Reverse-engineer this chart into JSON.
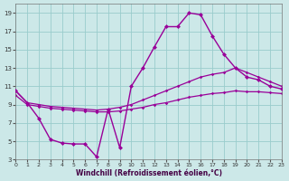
{
  "background_color": "#cce8e8",
  "grid_color": "#99cccc",
  "line_color": "#990099",
  "xlabel": "Windchill (Refroidissement éolien,°C)",
  "xlim": [
    0,
    23
  ],
  "ylim": [
    3,
    20
  ],
  "xticks": [
    0,
    1,
    2,
    3,
    4,
    5,
    6,
    7,
    8,
    9,
    10,
    11,
    12,
    13,
    14,
    15,
    16,
    17,
    18,
    19,
    20,
    21,
    22,
    23
  ],
  "yticks": [
    3,
    5,
    7,
    9,
    11,
    13,
    15,
    17,
    19
  ],
  "hours": [
    0,
    1,
    2,
    3,
    4,
    5,
    6,
    7,
    8,
    9,
    10,
    11,
    12,
    13,
    14,
    15,
    16,
    17,
    18,
    19,
    20,
    21,
    22,
    23
  ],
  "temp": [
    10.5,
    9.2,
    7.5,
    5.2,
    4.8,
    4.7,
    4.7,
    3.3,
    8.5,
    4.3,
    11.0,
    13.0,
    15.3,
    17.5,
    17.5,
    19.0,
    18.8,
    16.5,
    14.5,
    13.0,
    12.0,
    11.7,
    11.0,
    10.7
  ],
  "wc_high": [
    10.5,
    9.2,
    9.0,
    8.8,
    8.7,
    8.6,
    8.5,
    8.4,
    8.5,
    8.7,
    9.0,
    9.5,
    10.0,
    10.5,
    11.0,
    11.5,
    12.0,
    12.3,
    12.5,
    13.0,
    12.5,
    12.0,
    11.5,
    11.0
  ],
  "wc_low": [
    10.0,
    9.0,
    8.8,
    8.6,
    8.5,
    8.4,
    8.3,
    8.2,
    8.2,
    8.3,
    8.5,
    8.7,
    9.0,
    9.2,
    9.5,
    9.8,
    10.0,
    10.2,
    10.3,
    10.5,
    10.4,
    10.4,
    10.3,
    10.2
  ]
}
